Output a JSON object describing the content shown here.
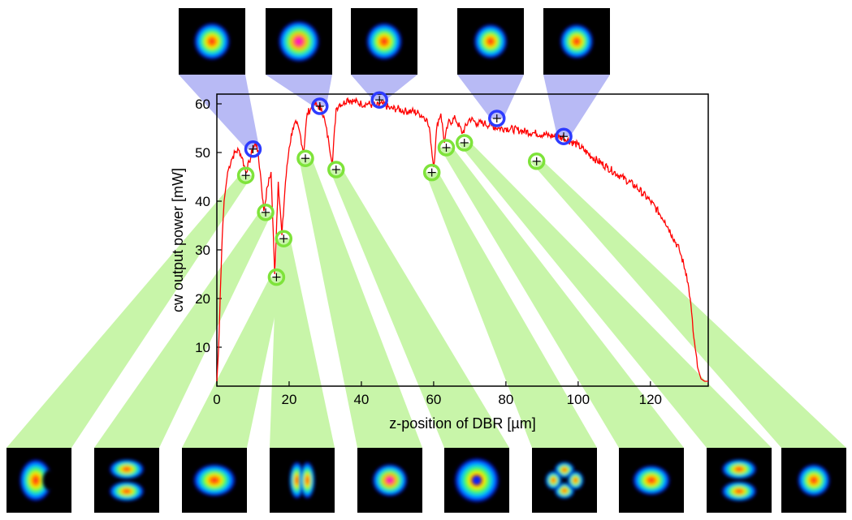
{
  "chart_data": {
    "type": "line",
    "xlabel": "z-position of DBR [µm]",
    "ylabel": "cw output power [mW]",
    "xlim": [
      0,
      136
    ],
    "ylim": [
      2,
      62
    ],
    "x_ticks": [
      0,
      20,
      40,
      60,
      80,
      100,
      120
    ],
    "y_ticks": [
      10,
      20,
      30,
      40,
      50,
      60
    ],
    "grid": false,
    "line_color": "#ff0000",
    "series": [
      {
        "values_x": [
          0,
          0.5,
          1,
          1.5,
          2,
          3,
          4,
          5,
          6,
          7,
          8,
          9,
          10,
          11,
          12,
          13,
          14,
          15,
          16,
          17,
          18,
          19,
          20,
          21,
          22,
          23,
          24,
          25,
          26,
          27,
          28,
          29,
          30,
          31,
          32,
          33,
          34,
          35,
          36,
          38,
          40,
          42,
          44,
          46,
          48,
          50,
          52,
          54,
          56,
          58,
          59,
          60,
          61,
          62,
          63,
          64,
          66,
          68,
          70,
          72,
          74,
          76,
          78,
          80,
          84,
          88,
          92,
          96,
          100,
          104,
          108,
          112,
          116,
          120,
          124,
          126,
          128,
          130,
          131,
          132,
          133,
          134,
          135,
          136
        ],
        "values_y": [
          3,
          10,
          22,
          33,
          40,
          46,
          48.5,
          50,
          50.5,
          49,
          46,
          48,
          51,
          52,
          46,
          38,
          43,
          46,
          25,
          44,
          33,
          44,
          51,
          55,
          56,
          54,
          50,
          58,
          59,
          60,
          59.5,
          59,
          56,
          52,
          48,
          59,
          60,
          60,
          61,
          60.5,
          60,
          60,
          59.5,
          60,
          59,
          59,
          58.5,
          58.5,
          58,
          57,
          54,
          47,
          56,
          58,
          52,
          56,
          57,
          54,
          57,
          56,
          56,
          55.5,
          55,
          55,
          54.5,
          54,
          53.5,
          53,
          51.5,
          49,
          47,
          45,
          43,
          40,
          36,
          33,
          30,
          25,
          20,
          12,
          6,
          3.5,
          3,
          3
        ]
      }
    ],
    "markers": {
      "blue_circles": [
        {
          "x": 10,
          "y": 50.7
        },
        {
          "x": 28.5,
          "y": 59.5
        },
        {
          "x": 45,
          "y": 60.8
        },
        {
          "x": 77.5,
          "y": 57
        },
        {
          "x": 96,
          "y": 53.3
        }
      ],
      "green_circles": [
        {
          "x": 8,
          "y": 45.3
        },
        {
          "x": 13.5,
          "y": 37.7
        },
        {
          "x": 16.5,
          "y": 24.4
        },
        {
          "x": 18.5,
          "y": 32.3
        },
        {
          "x": 24.5,
          "y": 48.8
        },
        {
          "x": 33,
          "y": 46.5
        },
        {
          "x": 59.5,
          "y": 45.9
        },
        {
          "x": 63.5,
          "y": 51
        },
        {
          "x": 68.5,
          "y": 52
        },
        {
          "x": 88.5,
          "y": 48.2
        }
      ]
    },
    "beam_profiles": {
      "top": [
        {
          "shape": "gaussian"
        },
        {
          "shape": "gaussian-large"
        },
        {
          "shape": "gaussian"
        },
        {
          "shape": "gaussian-small"
        },
        {
          "shape": "gaussian-small"
        }
      ],
      "bottom": [
        {
          "shape": "crescent"
        },
        {
          "shape": "two-lobe-vertical"
        },
        {
          "shape": "wide-blob"
        },
        {
          "shape": "two-lobe-horizontal"
        },
        {
          "shape": "triangle"
        },
        {
          "shape": "donut"
        },
        {
          "shape": "four-lobe"
        },
        {
          "shape": "star"
        },
        {
          "shape": "two-lobe-vertical-wide"
        },
        {
          "shape": "star-small"
        }
      ]
    },
    "colors": {
      "blue_marker": "#2d3bff",
      "green_marker": "#7ee33a",
      "blue_wedge": "#b8baf5",
      "green_wedge": "#c8f5a9",
      "axis": "#000000"
    }
  }
}
